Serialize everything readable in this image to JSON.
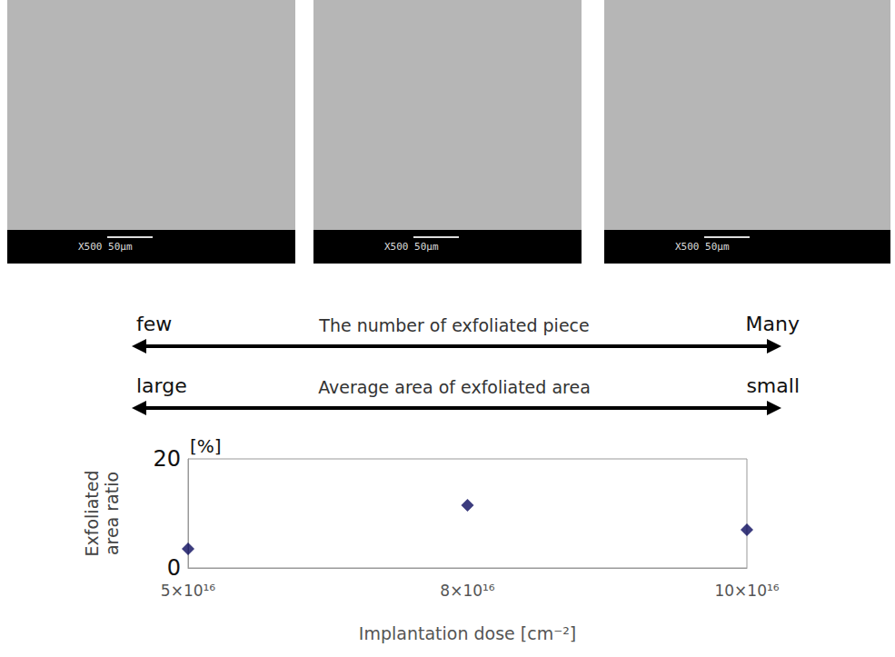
{
  "images": [
    {
      "scale_label": "X500 50μm"
    },
    {
      "scale_label": "X500 50μm"
    },
    {
      "scale_label": "X500 50μm"
    }
  ],
  "arrows": [
    {
      "label": "The number of exfoliated piece",
      "left": "few",
      "right": "Many"
    },
    {
      "label": "Average area of exfoliated area",
      "left": "large",
      "right": "small"
    }
  ],
  "chart_data": {
    "type": "scatter",
    "categories": [
      "5×10¹⁶",
      "8×10¹⁶",
      "10×10¹⁶"
    ],
    "values": [
      3.5,
      11.5,
      7
    ],
    "color": "#0b0b5e",
    "marker": "diamond",
    "x_label": "Implantation dose [cm⁻²]",
    "y_label": "Exfoliated area ratio",
    "y_unit": "[%]",
    "ylim": [
      0,
      20
    ],
    "yticks": [
      0,
      20
    ],
    "grid": false
  }
}
